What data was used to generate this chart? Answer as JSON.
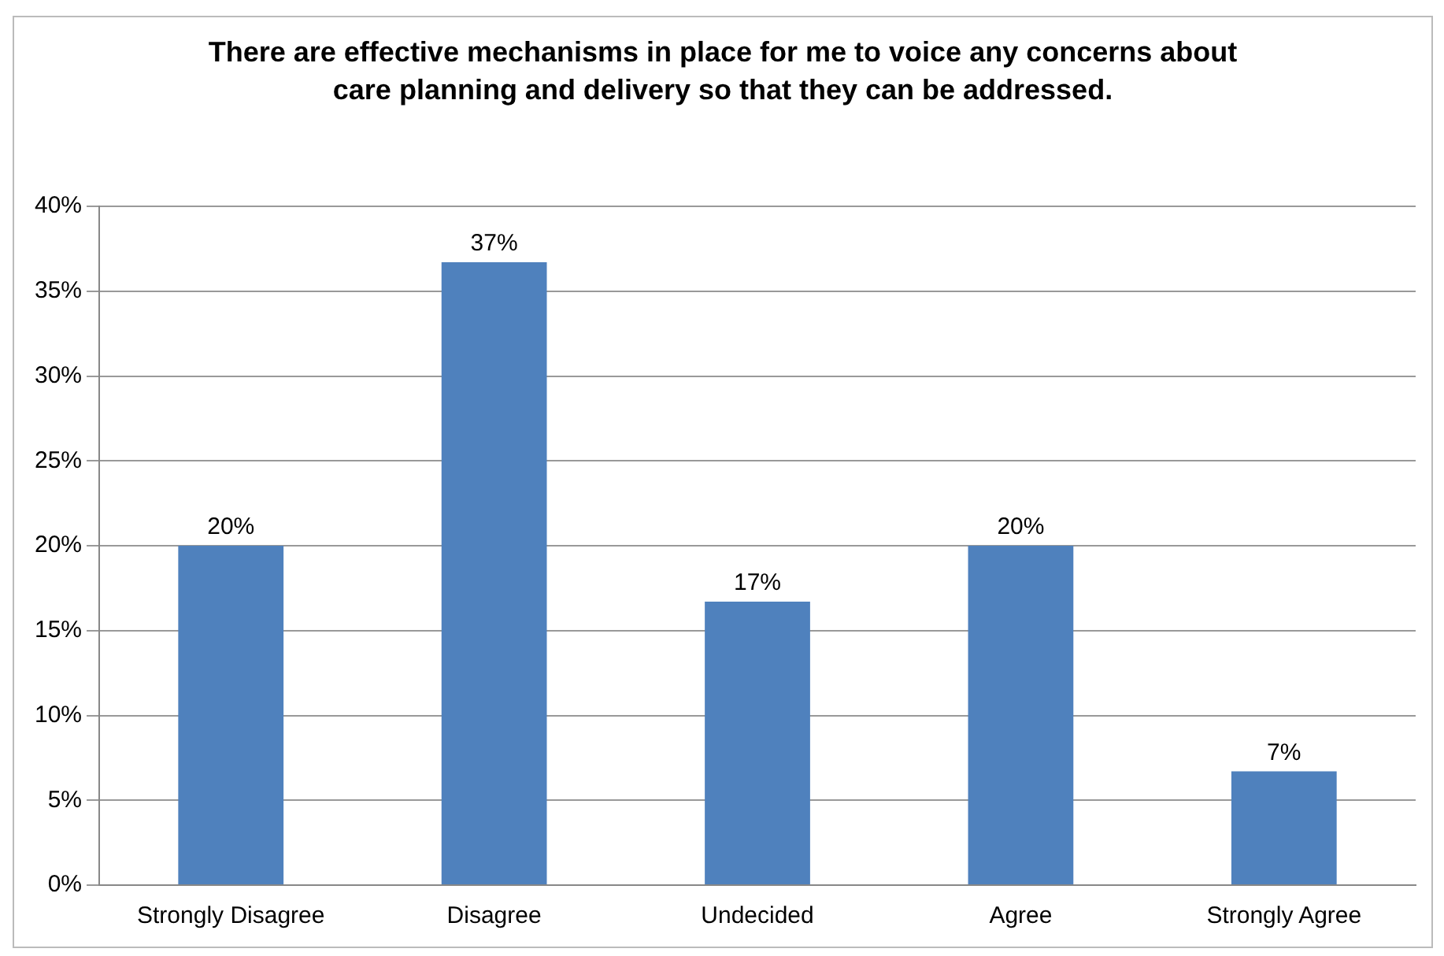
{
  "chart_data": {
    "type": "bar",
    "title": "There are effective mechanisms in place for me to voice any concerns about care planning and delivery so that they can be addressed.",
    "categories": [
      "Strongly Disagree",
      "Disagree",
      "Undecided",
      "Agree",
      "Strongly Agree"
    ],
    "values": [
      20,
      36.7,
      16.7,
      20,
      6.7
    ],
    "value_labels": [
      "20%",
      "37%",
      "17%",
      "20%",
      "7%"
    ],
    "color": "#4f81bd",
    "ylim": [
      0,
      40
    ],
    "yticks": [
      {
        "value": 0,
        "label": "0%"
      },
      {
        "value": 5,
        "label": "5%"
      },
      {
        "value": 10,
        "label": "10%"
      },
      {
        "value": 15,
        "label": "15%"
      },
      {
        "value": 20,
        "label": "20%"
      },
      {
        "value": 25,
        "label": "25%"
      },
      {
        "value": 30,
        "label": "30%"
      },
      {
        "value": 35,
        "label": "35%"
      },
      {
        "value": 40,
        "label": "40%"
      }
    ],
    "grid": "y"
  }
}
